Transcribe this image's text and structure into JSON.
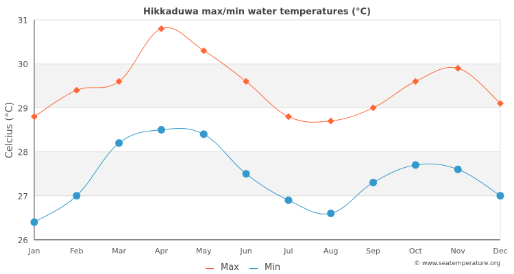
{
  "chart_data": {
    "type": "line",
    "title": "Hikkaduwa max/min water temperatures (°C)",
    "xlabel": "",
    "ylabel": "Celcius (°C)",
    "ylim": [
      26,
      31
    ],
    "yticks": [
      "26",
      "27",
      "28",
      "29",
      "30",
      "31"
    ],
    "categories": [
      "Jan",
      "Feb",
      "Mar",
      "Apr",
      "May",
      "Jun",
      "Jul",
      "Aug",
      "Sep",
      "Oct",
      "Nov",
      "Dec"
    ],
    "series": [
      {
        "name": "Max",
        "color": "#ff6633",
        "marker": "diamond",
        "values": [
          28.8,
          29.4,
          29.6,
          30.8,
          30.3,
          29.6,
          28.8,
          28.7,
          29.0,
          29.6,
          29.9,
          29.1
        ]
      },
      {
        "name": "Min",
        "color": "#3399cc",
        "marker": "circle",
        "values": [
          26.4,
          27.0,
          28.2,
          28.5,
          28.4,
          27.5,
          26.9,
          26.6,
          27.3,
          27.7,
          27.6,
          27.0
        ]
      }
    ],
    "grid": true,
    "banded_rows": true,
    "legend": "bottom-center",
    "credit": "© www.seatemperature.org"
  }
}
